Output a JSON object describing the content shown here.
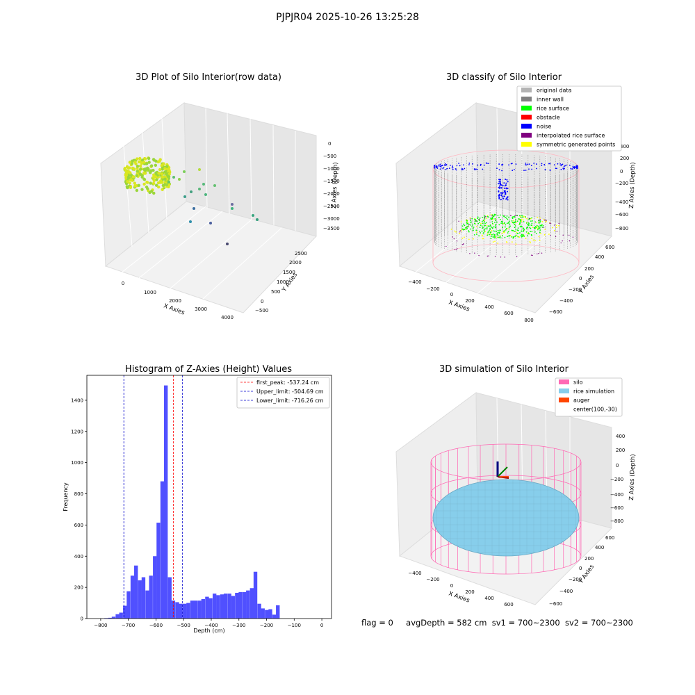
{
  "figure_title": "PJPJR04 2025-10-26 13:25:28",
  "colors": {
    "histogram_bar": "#5050ff",
    "peak_line": "#ff0000",
    "limit_line": "#0000cc",
    "original_data": "#b3b3b3",
    "inner_wall": "#808080",
    "rice_surface": "#00ff00",
    "obstacle": "#ff0000",
    "noise": "#0000ff",
    "interpolated_rice_surface": "#800080",
    "symmetric_generated_points": "#ffff00",
    "silo": "#ff69b4",
    "rice_simulation": "#87ceeb",
    "auger": "#ff4500"
  },
  "status_bar": {
    "flag": "flag = 0",
    "avg_depth": "avgDepth = 582 cm",
    "sv1": "sv1 = 700~2300",
    "sv2": "sv2 = 700~2300"
  },
  "chart_data": [
    {
      "type": "scatter",
      "projection": "3d",
      "title": "3D Plot of Silo Interior(row data)",
      "xlabel": "X Axies",
      "ylabel": "Y Axies",
      "zlabel": "Z Axies (Depth)",
      "x_ticks": [
        "0",
        "1000",
        "2000",
        "3000",
        "4000"
      ],
      "y_ticks": [
        "−500",
        "0",
        "500",
        "1000",
        "1500",
        "2000",
        "2500"
      ],
      "z_ticks": [
        "0",
        "−500",
        "−1000",
        "−1500",
        "−2000",
        "−2500",
        "−3000",
        "−3500"
      ],
      "points_note": "dense ring cluster near origin with scattered outlier points"
    },
    {
      "type": "scatter",
      "projection": "3d",
      "title": "3D classify of Silo Interior",
      "xlabel": "X Axies",
      "ylabel": "Y Axies",
      "zlabel": "Z Axies (Depth)",
      "x_ticks": [
        "−400",
        "−200",
        "0",
        "200",
        "400",
        "600",
        "800"
      ],
      "y_ticks": [
        "−600",
        "−400",
        "−200",
        "0",
        "200",
        "400",
        "600"
      ],
      "z_ticks": [
        "400",
        "200",
        "0",
        "−200",
        "−400",
        "−600",
        "−800"
      ],
      "legend": [
        "original data",
        "inner wall",
        "rice surface",
        "obstacle",
        "noise",
        "interpolated rice surface",
        "symmetric generated points"
      ],
      "legend_position": "upper right"
    },
    {
      "type": "bar",
      "title": "Histogram of Z-Axies (Height) Values",
      "xlabel": "Depth (cm)",
      "ylabel": "Frequency",
      "xlim": [
        -850,
        35
      ],
      "ylim": [
        0,
        1560
      ],
      "bin_width": 13.5,
      "x_ticks": [
        -800,
        -700,
        -600,
        -500,
        -400,
        -300,
        -200,
        -100,
        0
      ],
      "y_ticks": [
        0,
        200,
        400,
        600,
        800,
        1000,
        1200,
        1400
      ],
      "bins": [
        [
          -787,
          3
        ],
        [
          -773,
          5
        ],
        [
          -760,
          12
        ],
        [
          -746,
          28
        ],
        [
          -733,
          38
        ],
        [
          -719,
          82
        ],
        [
          -706,
          175
        ],
        [
          -692,
          275
        ],
        [
          -679,
          340
        ],
        [
          -665,
          245
        ],
        [
          -652,
          265
        ],
        [
          -638,
          180
        ],
        [
          -625,
          275
        ],
        [
          -611,
          400
        ],
        [
          -598,
          615
        ],
        [
          -584,
          880
        ],
        [
          -571,
          1495
        ],
        [
          -557,
          265
        ],
        [
          -544,
          115
        ],
        [
          -530,
          105
        ],
        [
          -517,
          95
        ],
        [
          -503,
          95
        ],
        [
          -490,
          100
        ],
        [
          -476,
          115
        ],
        [
          -463,
          115
        ],
        [
          -449,
          115
        ],
        [
          -436,
          125
        ],
        [
          -422,
          140
        ],
        [
          -409,
          130
        ],
        [
          -395,
          160
        ],
        [
          -382,
          150
        ],
        [
          -368,
          155
        ],
        [
          -355,
          160
        ],
        [
          -341,
          160
        ],
        [
          -328,
          145
        ],
        [
          -314,
          165
        ],
        [
          -301,
          170
        ],
        [
          -287,
          170
        ],
        [
          -274,
          180
        ],
        [
          -260,
          195
        ],
        [
          -247,
          300
        ],
        [
          -233,
          95
        ],
        [
          -220,
          65
        ],
        [
          -206,
          55
        ],
        [
          -193,
          60
        ],
        [
          -179,
          25
        ],
        [
          -166,
          85
        ]
      ],
      "vlines": [
        {
          "x": -537.24,
          "color": "#ff0000",
          "label": "first_peak: -537.24 cm"
        },
        {
          "x": -504.69,
          "color": "#0000cc",
          "label": "Upper_limit: -504.69 cm"
        },
        {
          "x": -716.26,
          "color": "#0000cc",
          "label": "Lower_limit: -716.26 cm"
        }
      ],
      "legend_position": "upper right"
    },
    {
      "type": "scatter",
      "projection": "3d",
      "title": "3D simulation of Silo Interior",
      "xlabel": "X Axies",
      "ylabel": "Y Axies",
      "zlabel": "Z Axies (Depth)",
      "x_ticks": [
        "−400",
        "−200",
        "0",
        "200",
        "400",
        "600"
      ],
      "y_ticks": [
        "−600",
        "−400",
        "−200",
        "0",
        "200",
        "400",
        "600"
      ],
      "z_ticks": [
        "400",
        "200",
        "0",
        "−200",
        "−400",
        "−600",
        "−800"
      ],
      "legend": [
        "silo",
        "rice simulation",
        "auger",
        "center(100,-30)"
      ],
      "legend_position": "upper right"
    }
  ]
}
